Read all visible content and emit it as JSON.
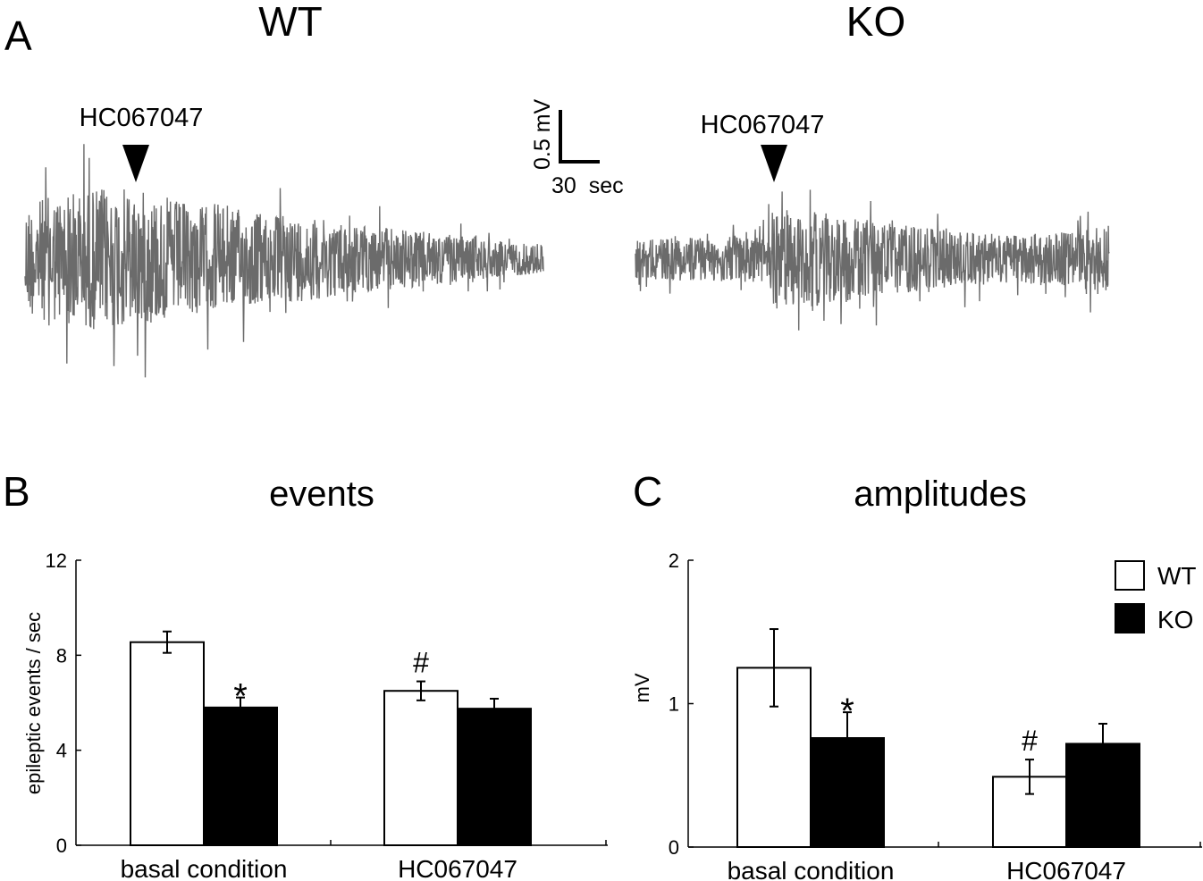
{
  "panel_a": {
    "label": "A",
    "wt_title": "WT",
    "ko_title": "KO",
    "wt_marker_label": "HC067047",
    "ko_marker_label": "HC067047",
    "scale_bar": {
      "vertical_label": "0.5 mV",
      "horizontal_label": "30  sec"
    },
    "trace_color": "#6b6b6b"
  },
  "chart_data": [
    {
      "type": "bar",
      "panel_label": "B",
      "title": "events",
      "xlabel": "",
      "ylabel": "epileptic events / sec",
      "ylim": [
        0,
        12
      ],
      "yticks": [
        "0",
        "4",
        "8",
        "12"
      ],
      "categories": [
        "basal condition",
        "HC067047"
      ],
      "series": [
        {
          "name": "WT",
          "values": [
            8.55,
            6.5
          ],
          "errors": [
            0.45,
            0.4
          ],
          "color": "#ffffff"
        },
        {
          "name": "KO",
          "values": [
            5.8,
            5.75
          ],
          "errors": [
            0.42,
            0.42
          ],
          "color": "#000000"
        }
      ],
      "annotations": [
        {
          "text": "*",
          "category": 0,
          "series": "KO"
        },
        {
          "text": "#",
          "category": 1,
          "series": "WT"
        }
      ]
    },
    {
      "type": "bar",
      "panel_label": "C",
      "title": "amplitudes",
      "xlabel": "",
      "ylabel": "mV",
      "ylim": [
        0,
        2
      ],
      "yticks": [
        "0",
        "1",
        "2"
      ],
      "categories": [
        "basal condition",
        "HC067047"
      ],
      "series": [
        {
          "name": "WT",
          "values": [
            1.25,
            0.49
          ],
          "errors": [
            0.27,
            0.12
          ],
          "color": "#ffffff"
        },
        {
          "name": "KO",
          "values": [
            0.76,
            0.72
          ],
          "errors": [
            0.18,
            0.14
          ],
          "color": "#000000"
        }
      ],
      "annotations": [
        {
          "text": "*",
          "category": 0,
          "series": "KO"
        },
        {
          "text": "#",
          "category": 1,
          "series": "WT"
        }
      ],
      "legend": {
        "placement": "top-right",
        "entries": [
          "WT",
          "KO"
        ]
      }
    }
  ]
}
